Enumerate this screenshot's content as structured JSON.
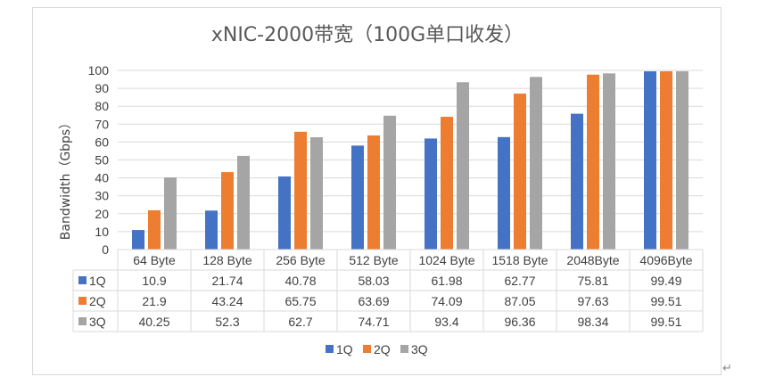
{
  "chart_data": {
    "type": "bar",
    "title": "xNIC-2000带宽（100G单口收发）",
    "ylabel": "Bandwidth（Gbps）",
    "xlabel": "",
    "ylim": [
      0,
      100
    ],
    "yticks": [
      0,
      10,
      20,
      30,
      40,
      50,
      60,
      70,
      80,
      90,
      100
    ],
    "grid": true,
    "legend": "bottom",
    "categories": [
      "64 Byte",
      "128 Byte",
      "256 Byte",
      "512 Byte",
      "1024 Byte",
      "1518 Byte",
      "2048Byte",
      "4096Byte"
    ],
    "series": [
      {
        "name": "1Q",
        "color": "#4472C4",
        "values": [
          10.9,
          21.74,
          40.78,
          58.03,
          61.98,
          62.77,
          75.81,
          99.49
        ]
      },
      {
        "name": "2Q",
        "color": "#ED7D31",
        "values": [
          21.9,
          43.24,
          65.75,
          63.69,
          74.09,
          87.05,
          97.63,
          99.51
        ]
      },
      {
        "name": "3Q",
        "color": "#A5A5A5",
        "values": [
          40.25,
          52.3,
          62.7,
          74.71,
          93.4,
          96.36,
          98.34,
          99.51
        ]
      }
    ],
    "data_table": {
      "rows": [
        {
          "label": "1Q",
          "cells": [
            "10.9",
            "21.74",
            "40.78",
            "58.03",
            "61.98",
            "62.77",
            "75.81",
            "99.49"
          ]
        },
        {
          "label": "2Q",
          "cells": [
            "21.9",
            "43.24",
            "65.75",
            "63.69",
            "74.09",
            "87.05",
            "97.63",
            "99.51"
          ]
        },
        {
          "label": "3Q",
          "cells": [
            "40.25",
            "52.3",
            "62.7",
            "74.71",
            "93.4",
            "96.36",
            "98.34",
            "99.51"
          ]
        }
      ]
    }
  },
  "return_mark": "↵"
}
